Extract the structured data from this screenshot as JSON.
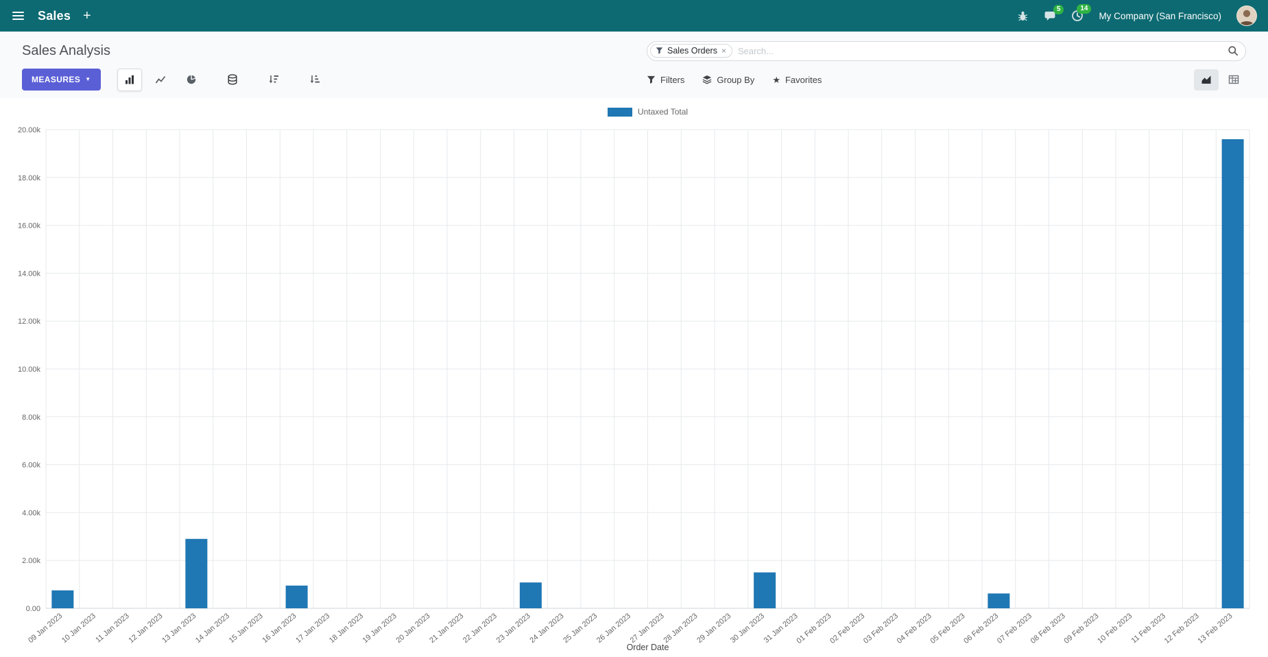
{
  "colors": {
    "navbar": "#0d6a72",
    "primary": "#5a5fd6",
    "badge": "#2fb344",
    "bar": "#1f77b4"
  },
  "icons": {
    "caret_down": "▼",
    "star": "★",
    "plus": "+",
    "facet_remove": "×"
  },
  "topbar": {
    "brand": "Sales",
    "plus_label": "+",
    "company": "My Company (San Francisco)",
    "badges": {
      "messages": "5",
      "activities": "14"
    }
  },
  "control_panel": {
    "title": "Sales Analysis",
    "search": {
      "facet": "Sales Orders",
      "placeholder": "Search..."
    },
    "measures_label": "MEASURES",
    "filters_label": "Filters",
    "group_by_label": "Group By",
    "favorites_label": "Favorites"
  },
  "chart_data": {
    "type": "bar",
    "title": "",
    "legend": [
      "Untaxed Total"
    ],
    "legend_position": "top",
    "series_color": "#1f77b4",
    "grid": true,
    "xlabel": "Order Date",
    "ylabel": "",
    "ylim": [
      0,
      20000
    ],
    "y_ticks": [
      "0.00",
      "2.00k",
      "4.00k",
      "6.00k",
      "8.00k",
      "10.00k",
      "12.00k",
      "14.00k",
      "16.00k",
      "18.00k",
      "20.00k"
    ],
    "categories": [
      "09 Jan 2023",
      "10 Jan 2023",
      "11 Jan 2023",
      "12 Jan 2023",
      "13 Jan 2023",
      "14 Jan 2023",
      "15 Jan 2023",
      "16 Jan 2023",
      "17 Jan 2023",
      "18 Jan 2023",
      "19 Jan 2023",
      "20 Jan 2023",
      "21 Jan 2023",
      "22 Jan 2023",
      "23 Jan 2023",
      "24 Jan 2023",
      "25 Jan 2023",
      "26 Jan 2023",
      "27 Jan 2023",
      "28 Jan 2023",
      "29 Jan 2023",
      "30 Jan 2023",
      "31 Jan 2023",
      "01 Feb 2023",
      "02 Feb 2023",
      "03 Feb 2023",
      "04 Feb 2023",
      "05 Feb 2023",
      "06 Feb 2023",
      "07 Feb 2023",
      "08 Feb 2023",
      "09 Feb 2023",
      "10 Feb 2023",
      "11 Feb 2023",
      "12 Feb 2023",
      "13 Feb 2023"
    ],
    "values": [
      750,
      0,
      0,
      0,
      2900,
      0,
      0,
      950,
      0,
      0,
      0,
      0,
      0,
      0,
      1080,
      0,
      0,
      0,
      0,
      0,
      0,
      1500,
      0,
      0,
      0,
      0,
      0,
      0,
      620,
      0,
      0,
      0,
      0,
      0,
      0,
      19600
    ]
  }
}
